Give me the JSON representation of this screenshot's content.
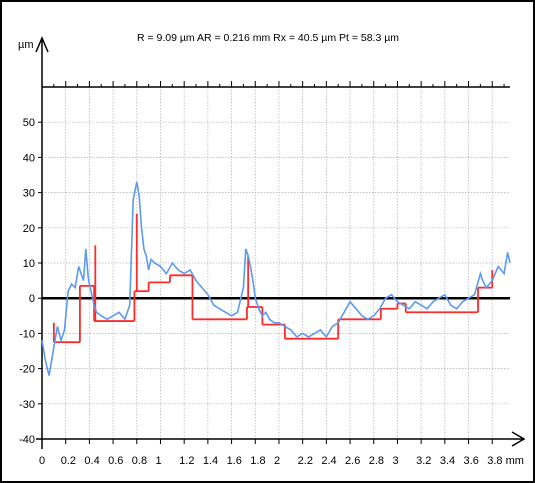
{
  "chart_data": {
    "type": "line",
    "title": "R = 9.09 µm  AR = 0.216 mm  Rx = 40.5 µm Pt = 58.3 µm",
    "ylabel": "µm",
    "xunit": "mm",
    "xlim": [
      0,
      3.95
    ],
    "ylim": [
      -40,
      60
    ],
    "x_ticks": [
      {
        "value": 0,
        "label": "0"
      },
      {
        "value": 0.2,
        "label": "0.2"
      },
      {
        "value": 0.4,
        "label": "0.4"
      },
      {
        "value": 0.6,
        "label": "0.6"
      },
      {
        "value": 0.8,
        "label": "0.8"
      },
      {
        "value": 1.0,
        "label": "1"
      },
      {
        "value": 1.2,
        "label": "1.2"
      },
      {
        "value": 1.4,
        "label": "1.4"
      },
      {
        "value": 1.6,
        "label": "1.6"
      },
      {
        "value": 1.8,
        "label": "1.8"
      },
      {
        "value": 2.0,
        "label": "2"
      },
      {
        "value": 2.2,
        "label": "2.2"
      },
      {
        "value": 2.4,
        "label": "2.4"
      },
      {
        "value": 2.6,
        "label": "2.6"
      },
      {
        "value": 2.8,
        "label": "2.8"
      },
      {
        "value": 3.0,
        "label": "3"
      },
      {
        "value": 3.2,
        "label": "3.2"
      },
      {
        "value": 3.4,
        "label": "3.4"
      },
      {
        "value": 3.6,
        "label": "3.6"
      },
      {
        "value": 3.8,
        "label": "3.8 mm"
      }
    ],
    "y_ticks": [
      {
        "value": 50,
        "label": "50"
      },
      {
        "value": 40,
        "label": "40"
      },
      {
        "value": 30,
        "label": "30"
      },
      {
        "value": 20,
        "label": "20"
      },
      {
        "value": 10,
        "label": "10"
      },
      {
        "value": 0,
        "label": "0"
      },
      {
        "value": -10,
        "label": "-10"
      },
      {
        "value": -20,
        "label": "-20"
      },
      {
        "value": -30,
        "label": "-30"
      },
      {
        "value": -40,
        "label": "-40"
      }
    ],
    "grid": true,
    "colors": {
      "profile": "#5b9bf0",
      "motifs": "#ff2a2a",
      "zero_line": "#000000",
      "grid": "#b0b0b0"
    },
    "series": [
      {
        "type": "line",
        "x": [
          0,
          0.03,
          0.06,
          0.1,
          0.13,
          0.16,
          0.19,
          0.22,
          0.25,
          0.28,
          0.31,
          0.33,
          0.35,
          0.37,
          0.39,
          0.4,
          0.42,
          0.44,
          0.46,
          0.5,
          0.55,
          0.6,
          0.65,
          0.7,
          0.74,
          0.77,
          0.8,
          0.82,
          0.84,
          0.86,
          0.88,
          0.9,
          0.92,
          0.95,
          1.0,
          1.05,
          1.1,
          1.15,
          1.2,
          1.25,
          1.3,
          1.35,
          1.4,
          1.45,
          1.5,
          1.55,
          1.6,
          1.65,
          1.7,
          1.72,
          1.74,
          1.76,
          1.78,
          1.8,
          1.83,
          1.86,
          1.89,
          1.92,
          1.96,
          2.0,
          2.05,
          2.1,
          2.15,
          2.2,
          2.25,
          2.3,
          2.35,
          2.4,
          2.45,
          2.5,
          2.55,
          2.6,
          2.65,
          2.7,
          2.75,
          2.8,
          2.85,
          2.9,
          2.95,
          3.0,
          3.05,
          3.1,
          3.15,
          3.2,
          3.25,
          3.3,
          3.35,
          3.4,
          3.45,
          3.5,
          3.55,
          3.6,
          3.65,
          3.7,
          3.72,
          3.75,
          3.8,
          3.85,
          3.9,
          3.93,
          3.95
        ],
        "y": [
          -12,
          -18,
          -22,
          -14,
          -8,
          -12,
          -9,
          2,
          4,
          3,
          9,
          7,
          5,
          14,
          6,
          4,
          1,
          -2,
          -4,
          -5,
          -6,
          -5,
          -4,
          -6,
          -2,
          28,
          33,
          29,
          20,
          14,
          12,
          8,
          11,
          10,
          9,
          7,
          10,
          8,
          7,
          8,
          5,
          3,
          1,
          -2,
          -3,
          -4,
          -5,
          -4,
          3,
          14,
          12,
          9,
          5,
          0,
          -3,
          -5,
          -4,
          -6,
          -7,
          -7,
          -8,
          -9,
          -11,
          -10,
          -11,
          -10,
          -9,
          -11,
          -8,
          -7,
          -4,
          -1,
          -3,
          -5,
          -6,
          -5,
          -3,
          0,
          1,
          -1,
          -2,
          -3,
          -1,
          -2,
          -3,
          -1,
          0,
          1,
          -2,
          -3,
          -1,
          0,
          1,
          7,
          5,
          3,
          5,
          9,
          7,
          13,
          10
        ]
      },
      {
        "type": "step",
        "segments": [
          {
            "x0": 0.1,
            "x1": 0.32,
            "y": -12.5
          },
          {
            "x0": 0.32,
            "x1": 0.44,
            "y": 3.5
          },
          {
            "x0": 0.44,
            "x1": 0.78,
            "y": -6.5
          },
          {
            "x0": 0.78,
            "x1": 0.9,
            "y": 2
          },
          {
            "x0": 0.9,
            "x1": 1.08,
            "y": 4.5
          },
          {
            "x0": 1.08,
            "x1": 1.27,
            "y": 6.5
          },
          {
            "x0": 1.27,
            "x1": 1.73,
            "y": -6
          },
          {
            "x0": 1.73,
            "x1": 1.86,
            "y": -2.5
          },
          {
            "x0": 1.86,
            "x1": 2.05,
            "y": -7.5
          },
          {
            "x0": 2.05,
            "x1": 2.5,
            "y": -11.5
          },
          {
            "x0": 2.5,
            "x1": 2.86,
            "y": -6
          },
          {
            "x0": 2.86,
            "x1": 3.0,
            "y": -3
          },
          {
            "x0": 3.0,
            "x1": 3.07,
            "y": -1.5
          },
          {
            "x0": 3.07,
            "x1": 3.68,
            "y": -4
          },
          {
            "x0": 3.68,
            "x1": 3.8,
            "y": 3
          }
        ],
        "spikes": [
          {
            "x": 0.45,
            "y0": -6.5,
            "y1": 15
          },
          {
            "x": 0.8,
            "y0": 2,
            "y1": 24
          },
          {
            "x": 1.74,
            "y0": -2.5,
            "y1": 12
          }
        ]
      }
    ]
  }
}
